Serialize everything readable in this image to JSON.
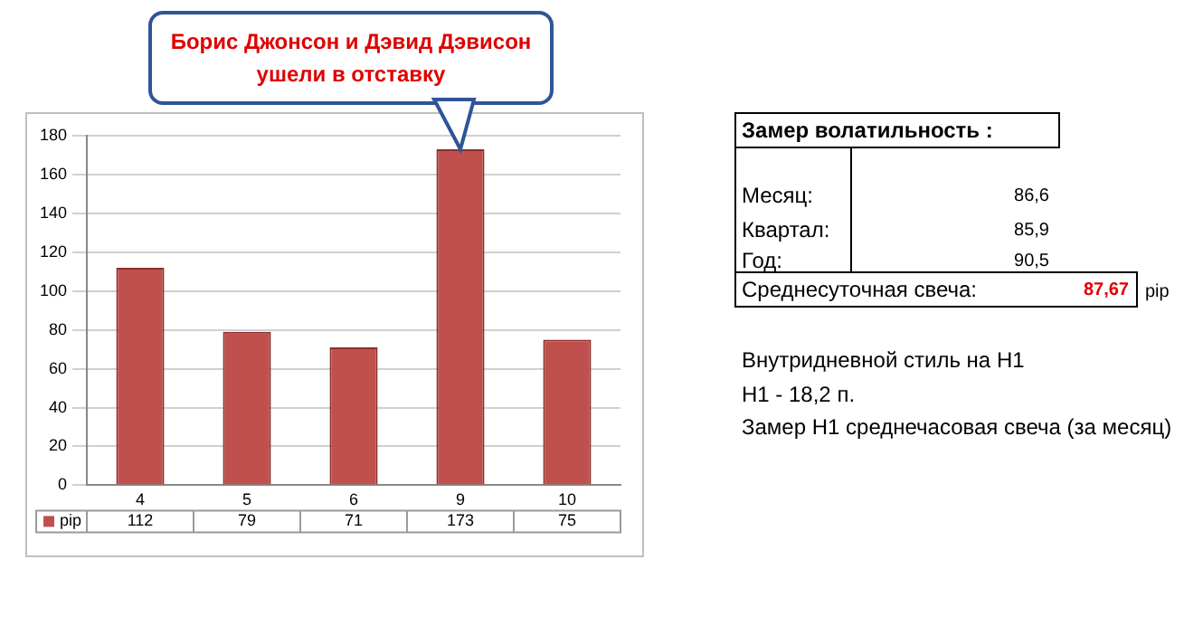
{
  "chart_data": {
    "type": "bar",
    "categories": [
      "4",
      "5",
      "6",
      "9",
      "10"
    ],
    "series": [
      {
        "name": "pip",
        "color": "#c0504d",
        "values": [
          112,
          79,
          71,
          173,
          75
        ]
      }
    ],
    "ylim": [
      0,
      180
    ],
    "yticks": [
      0,
      20,
      40,
      60,
      80,
      100,
      120,
      140,
      160,
      180
    ],
    "grid": "y",
    "legend": "bottom",
    "data_labels": true,
    "annotations": [
      {
        "text": "Борис Джонсон и Дэвид Дэвисон ушели в отставку",
        "x": "9",
        "y": 173
      },
      "Замер  волатильность  :",
      "Месяц:",
      "86,6",
      "Квартал:",
      "85,9",
      "Год:",
      "90,5",
      "Среднесуточная свеча:",
      "87,67",
      "pip",
      "Внутридневной стиль на H1",
      "H1 - 18,2 п.",
      "Замер H1 среднечасовая свеча (за месяц)"
    ]
  }
}
